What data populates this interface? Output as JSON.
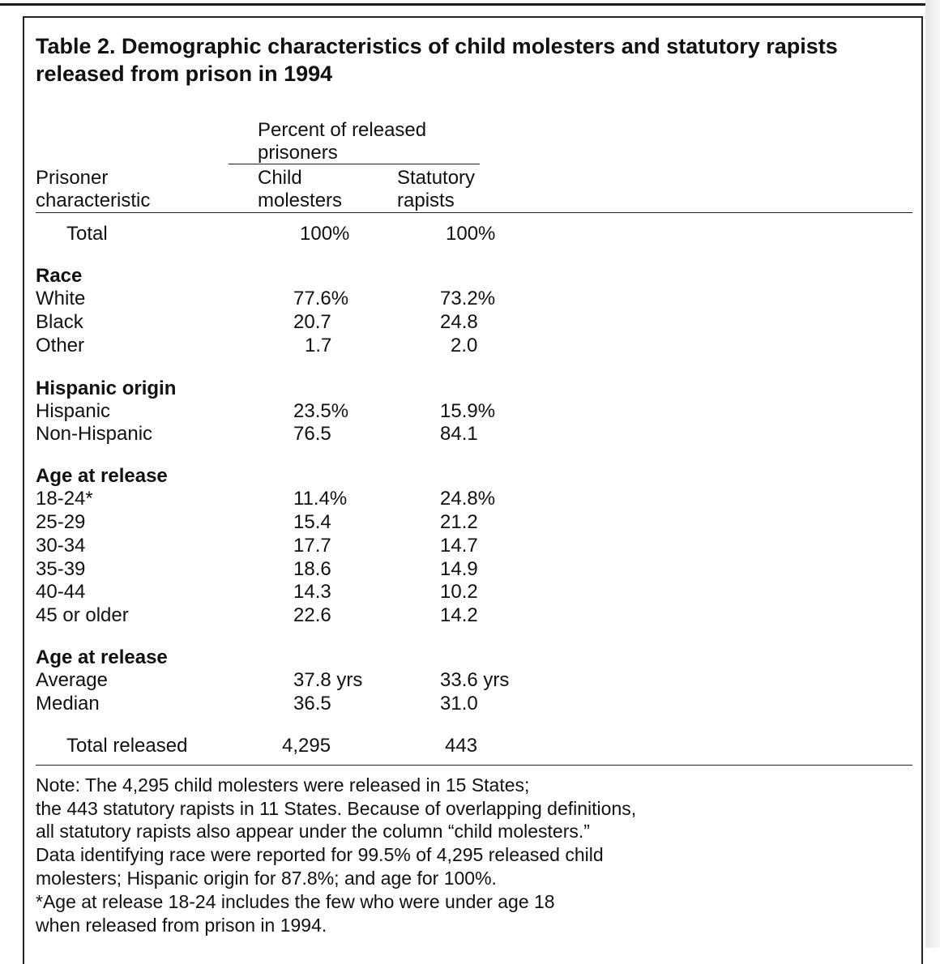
{
  "title": {
    "line1": "Table 2. Demographic characteristics of child molesters and statutory rapists",
    "line2": "released from prison in 1994"
  },
  "header": {
    "stub_line1": "Prisoner",
    "stub_line2": "characteristic",
    "spanner_line1": "Percent of released",
    "spanner_line2": "prisoners",
    "col1_line1": "Child",
    "col1_line2": "molesters",
    "col2_line1": "Statutory",
    "col2_line2": "rapists"
  },
  "total_row": {
    "label": "Total",
    "col1": "100%",
    "col2": "100%"
  },
  "sections": [
    {
      "heading": "Race",
      "rows": [
        {
          "label": "White",
          "col1": "77.6%",
          "col2": "73.2%"
        },
        {
          "label": "Black",
          "col1": "20.7",
          "col2": "24.8"
        },
        {
          "label": "Other",
          "col1": "1.7",
          "col2": "2.0"
        }
      ]
    },
    {
      "heading": "Hispanic origin",
      "rows": [
        {
          "label": "Hispanic",
          "col1": "23.5%",
          "col2": "15.9%"
        },
        {
          "label": "Non-Hispanic",
          "col1": "76.5",
          "col2": "84.1"
        }
      ]
    },
    {
      "heading": "Age at release",
      "rows": [
        {
          "label": "18-24*",
          "col1": "11.4%",
          "col2": "24.8%"
        },
        {
          "label": "25-29",
          "col1": "15.4",
          "col2": "21.2"
        },
        {
          "label": "30-34",
          "col1": "17.7",
          "col2": "14.7"
        },
        {
          "label": "35-39",
          "col1": "18.6",
          "col2": "14.9"
        },
        {
          "label": "40-44",
          "col1": "14.3",
          "col2": "10.2"
        },
        {
          "label": "45 or older",
          "col1": "22.6",
          "col2": "14.2"
        }
      ]
    },
    {
      "heading": "Age at release",
      "rows": [
        {
          "label": "Average",
          "col1": "37.8 yrs",
          "col2": "33.6 yrs"
        },
        {
          "label": "Median",
          "col1": "36.5",
          "col2": "31.0"
        }
      ]
    }
  ],
  "total_released": {
    "label": "Total released",
    "col1": "4,295",
    "col2": "443"
  },
  "note": [
    "Note: The 4,295 child molesters were released in 15 States;",
    "the 443 statutory rapists in 11 States. Because of overlapping definitions,",
    "all statutory rapists also appear under the column “child molesters.”",
    "Data identifying race were reported for 99.5% of 4,295 released child",
    "molesters; Hispanic origin for 87.8%; and age for 100%.",
    "*Age at release 18-24 includes the few who were under age 18",
    "when released from prison in 1994."
  ]
}
